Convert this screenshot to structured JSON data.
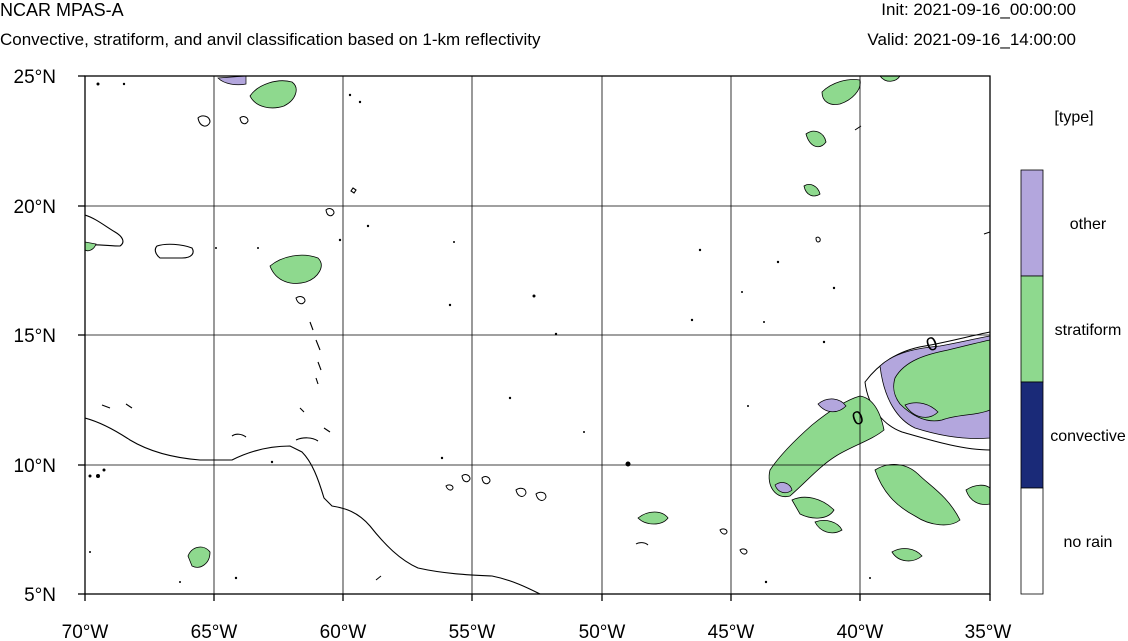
{
  "header": {
    "title": "NCAR MPAS-A",
    "subtitle": "Convective, stratiform, and anvil classification based on 1-km reflectivity",
    "init": "Init: 2021-09-16_00:00:00",
    "valid": "Valid: 2021-09-16_14:00:00"
  },
  "map": {
    "lat_labels": [
      "25°N",
      "20°N",
      "15°N",
      "10°N",
      "5°N"
    ],
    "lon_labels": [
      "70°W",
      "65°W",
      "60°W",
      "55°W",
      "50°W",
      "45°W",
      "40°W",
      "35°W"
    ],
    "contour_labels": [
      "0",
      "0"
    ]
  },
  "legend": {
    "title": "[type]",
    "items": [
      {
        "label": "other",
        "color": "#b3a6dd"
      },
      {
        "label": "stratiform",
        "color": "#8ed98e"
      },
      {
        "label": "convective",
        "color": "#1a2a78"
      },
      {
        "label": "no rain",
        "color": "#ffffff"
      }
    ]
  }
}
